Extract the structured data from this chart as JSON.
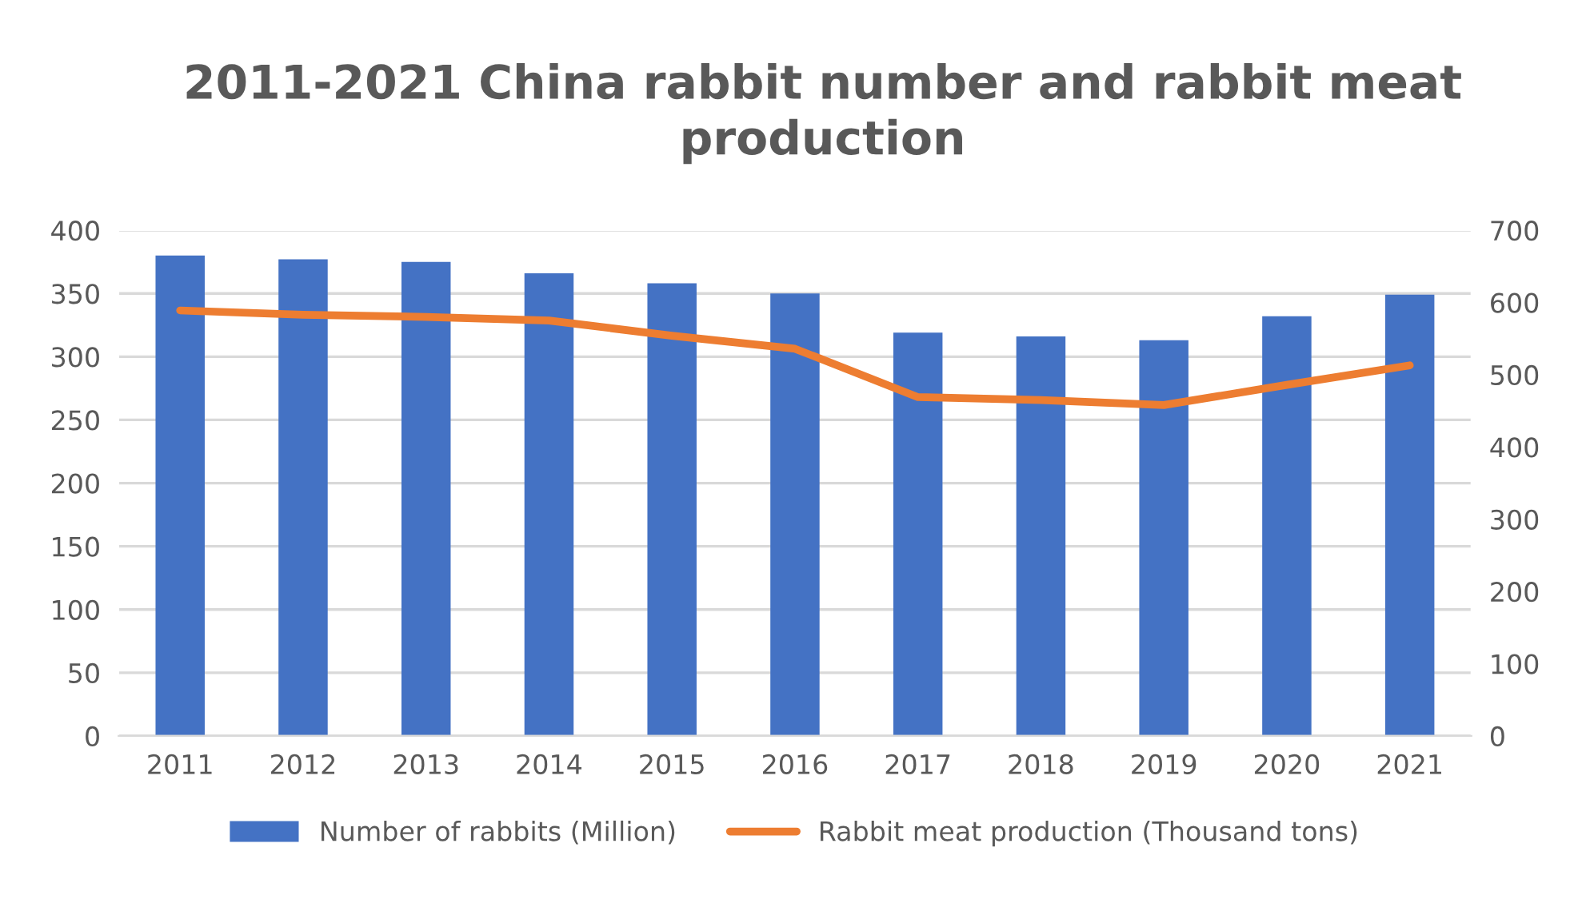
{
  "chart_data": {
    "type": "bar",
    "title": "2011-2021 China rabbit number and rabbit meat production",
    "categories": [
      "2011",
      "2012",
      "2013",
      "2014",
      "2015",
      "2016",
      "2017",
      "2018",
      "2019",
      "2020",
      "2021"
    ],
    "series": [
      {
        "name": "Number of rabbits (Million)",
        "type": "bar",
        "color": "#4472c4",
        "values": [
          380,
          377,
          375,
          366,
          358,
          350,
          319,
          316,
          313,
          332,
          349
        ]
      },
      {
        "name": "Rabbit meat production (Thousand tons)",
        "type": "line",
        "axis": "y2",
        "color": "#ed7d31",
        "values": [
          589,
          583,
          580,
          575,
          554,
          536,
          469,
          465,
          458,
          486,
          513
        ]
      }
    ],
    "ylim": [
      0,
      400
    ],
    "yticks": [
      0,
      50,
      100,
      150,
      200,
      250,
      300,
      350,
      400
    ],
    "y2lim": [
      0,
      700
    ],
    "y2ticks": [
      0,
      100,
      200,
      300,
      400,
      500,
      600,
      700
    ],
    "grid": "y",
    "legend": "bottom",
    "marker": "none",
    "line_style": "solid"
  }
}
